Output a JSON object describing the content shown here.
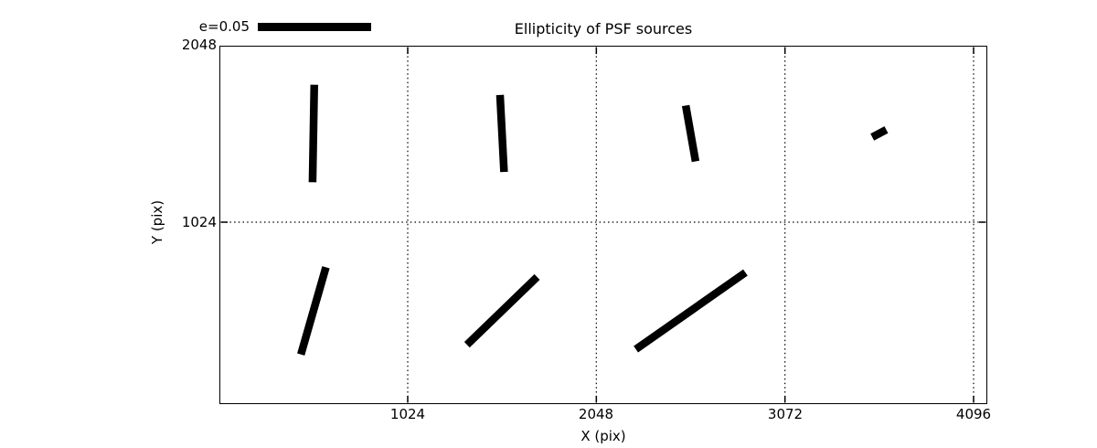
{
  "chart_data": {
    "type": "scatter",
    "variant": "psf-ellipticity-whisker-map",
    "title": "Ellipticity of PSF sources",
    "xlabel": "X (pix)",
    "ylabel": "Y (pix)",
    "xlim": [
      0,
      4170
    ],
    "ylim": [
      -40,
      2080
    ],
    "grid": "dotted",
    "legend": {
      "label": "e=0.05",
      "e_value": 0.05,
      "position": "upper-left-outside"
    },
    "x_ticks": [
      {
        "value": 1024,
        "label": "1024"
      },
      {
        "value": 2048,
        "label": "2048"
      },
      {
        "value": 3072,
        "label": "3072"
      },
      {
        "value": 4096,
        "label": "4096"
      }
    ],
    "y_ticks": [
      {
        "value": 2048,
        "label": "2048"
      },
      {
        "value": 1024,
        "label": "1024"
      }
    ],
    "whiskers": [
      {
        "x": 512,
        "y": 1536,
        "e": 0.043,
        "angle_deg": 89
      },
      {
        "x": 1536,
        "y": 1536,
        "e": 0.034,
        "angle_deg": 93
      },
      {
        "x": 2560,
        "y": 1536,
        "e": 0.025,
        "angle_deg": 100
      },
      {
        "x": 3584,
        "y": 1536,
        "e": 0.007,
        "angle_deg": 28
      },
      {
        "x": 512,
        "y": 512,
        "e": 0.04,
        "angle_deg": 74
      },
      {
        "x": 1536,
        "y": 512,
        "e": 0.043,
        "angle_deg": 44
      },
      {
        "x": 2560,
        "y": 512,
        "e": 0.059,
        "angle_deg": 35
      }
    ],
    "colors": {
      "foreground": "#000000",
      "background": "#ffffff"
    }
  }
}
